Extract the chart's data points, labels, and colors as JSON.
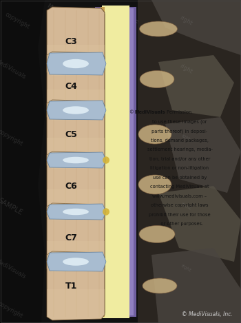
{
  "bg_color": "#111111",
  "vertebra_color": "#d4b896",
  "vertebra_edge": "#6a5030",
  "disc_fc": "#a8bcd0",
  "disc_ec": "#6080a0",
  "nucleus_color": "#d8e8f0",
  "spinal_cord_color": "#f0eca0",
  "dura_outer_color": "#7060a0",
  "dura_inner_color": "#9080c0",
  "ligament_color": "#c8a060",
  "yellow_disc_color": "#d4b030",
  "nerve_color": "#c8b090",
  "copyright_text": "© MediVisuals, Inc.",
  "vertebra_labels": [
    "C3",
    "C4",
    "C5",
    "C6",
    "C7",
    "T1"
  ],
  "perm_lines": [
    "© MediVisuals Permission",
    "to use these images (or",
    "parts thereof) in deposi-",
    "tions, demand packages,",
    "settlement hearings, media-",
    "tion, trial and/or any other",
    "litigation or non-litigation",
    "use can be obtained by",
    "contacting MediVisuals at",
    "www.medivisuals.com –",
    "otherwise copyright laws",
    "prohibit their use for those",
    "   or other purposes."
  ],
  "figsize": [
    3.5,
    4.69
  ],
  "dpi": 100
}
